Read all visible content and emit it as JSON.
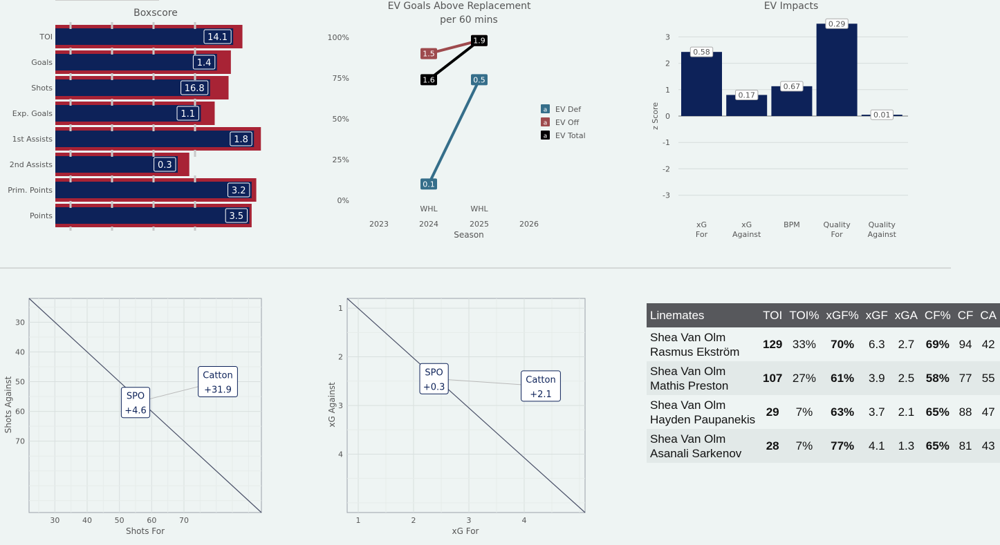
{
  "colors": {
    "navy": "#0d2259",
    "red": "#a82335",
    "def": "#356e8a",
    "off": "#9e4a4d",
    "total": "#000000",
    "bg": "#eef4f3"
  },
  "chart_data": [
    {
      "id": "boxscore",
      "type": "bar",
      "title": "Boxscore",
      "categories": [
        "TOI",
        "Goals",
        "Shots",
        "Exp. Goals",
        "1st Assists",
        "2nd Assists",
        "Prim. Points",
        "Points"
      ],
      "values": [
        14.1,
        1.4,
        16.8,
        1.1,
        1.8,
        0.3,
        3.2,
        3.5
      ],
      "value_labels": [
        "14.1",
        "1.4",
        "16.8",
        "1.1",
        "1.8",
        "0.3",
        "3.2",
        "3.5"
      ],
      "bar_fraction": [
        0.77,
        0.7,
        0.67,
        0.63,
        0.86,
        0.53,
        0.85,
        0.84
      ],
      "background_bar_fraction": [
        0.81,
        0.76,
        0.75,
        0.69,
        0.89,
        0.58,
        0.87,
        0.85
      ],
      "grid": true,
      "legend": "none"
    },
    {
      "id": "ev-gar",
      "type": "line",
      "title": "EV Goals Above Replacement",
      "subtitle": "per 60 mins",
      "xlabel": "Season",
      "x_ticks": [
        "2023",
        "2024",
        "2025",
        "2026"
      ],
      "league_labels": [
        {
          "x": "2024",
          "text": "WHL"
        },
        {
          "x": "2025",
          "text": "WHL"
        }
      ],
      "y_ticks": [
        "0%",
        "25%",
        "50%",
        "75%",
        "100%"
      ],
      "ylim": [
        0,
        100
      ],
      "legend": "right",
      "series": [
        {
          "name": "EV Def",
          "color": "#356e8a",
          "points": [
            {
              "x": "2024",
              "y": 10,
              "label": "0.1"
            },
            {
              "x": "2025",
              "y": 74,
              "label": "0.5"
            }
          ]
        },
        {
          "name": "EV Off",
          "color": "#9e4a4d",
          "points": [
            {
              "x": "2024",
              "y": 90,
              "label": "1.5"
            },
            {
              "x": "2025",
              "y": 98,
              "label": "1.9"
            }
          ]
        },
        {
          "name": "EV Total",
          "color": "#000000",
          "points": [
            {
              "x": "2024",
              "y": 74,
              "label": "1.6"
            },
            {
              "x": "2025",
              "y": 98,
              "label": "1.9"
            }
          ]
        }
      ],
      "legend_key_glyph": "a"
    },
    {
      "id": "ev-impacts",
      "type": "bar",
      "title": "EV Impacts",
      "ylabel": "z Score",
      "categories": [
        [
          "xG",
          "For"
        ],
        [
          "xG",
          "Against"
        ],
        [
          "BPM"
        ],
        [
          "Quality",
          "For"
        ],
        [
          "Quality",
          "Against"
        ]
      ],
      "values": [
        2.43,
        0.8,
        1.13,
        3.5,
        0.05
      ],
      "value_labels": [
        "0.58",
        "0.17",
        "0.67",
        "0.29",
        "0.01"
      ],
      "y_ticks": [
        3,
        2,
        1,
        0,
        -1,
        -2,
        -3
      ],
      "ylim": [
        -3.4,
        3.6
      ],
      "grid": true,
      "legend": "none"
    },
    {
      "id": "shots-scatter",
      "type": "scatter",
      "xlabel": "Shots For",
      "ylabel": "Shots Against",
      "x_ticks": [
        30,
        40,
        50,
        60,
        70
      ],
      "y_ticks": [
        30,
        40,
        50,
        60,
        70
      ],
      "xlim": [
        22,
        94
      ],
      "ylim": [
        22,
        94
      ],
      "y_reversed": true,
      "diagonal": true,
      "points": [
        {
          "name": "SPO",
          "value_label": "+4.6",
          "x": 58,
          "y": 56
        },
        {
          "name": "Catton",
          "value_label": "+31.9",
          "x": 68,
          "y": 57
        }
      ],
      "label_boxes": [
        {
          "name": "SPO",
          "value_label": "+4.6",
          "x": 55,
          "y": 57
        },
        {
          "name": "Catton",
          "value_label": "+31.9",
          "x": 80.5,
          "y": 50
        }
      ]
    },
    {
      "id": "xg-scatter",
      "type": "scatter",
      "xlabel": "xG For",
      "ylabel": "xG Against",
      "x_ticks": [
        1,
        2,
        3,
        4
      ],
      "y_ticks": [
        1,
        2,
        3,
        4
      ],
      "xlim": [
        0.8,
        5.1
      ],
      "ylim": [
        0.8,
        5.2
      ],
      "y_reversed": true,
      "diagonal": true,
      "points": [
        {
          "name": "SPO",
          "value_label": "+0.3",
          "x": 2.42,
          "y": 2.45
        },
        {
          "name": "Catton",
          "value_label": "+2.1",
          "x": 4.3,
          "y": 2.53
        }
      ],
      "label_boxes": [
        {
          "name": "SPO",
          "value_label": "+0.3",
          "x": 2.37,
          "y": 2.45
        },
        {
          "name": "Catton",
          "value_label": "+2.1",
          "x": 4.3,
          "y": 2.6
        }
      ]
    }
  ],
  "linemates": {
    "headers": [
      "Linemates",
      "TOI",
      "TOI%",
      "xGF%",
      "xGF",
      "xGA",
      "CF%",
      "CF",
      "CA"
    ],
    "rows": [
      {
        "line1": "Shea Van Olm",
        "line2": "Rasmus Ekström",
        "toi": "129",
        "toi_pct": "33%",
        "xgf_pct": "70%",
        "xgf": "6.3",
        "xga": "2.7",
        "cf_pct": "69%",
        "cf": "94",
        "ca": "42"
      },
      {
        "line1": "Shea Van Olm",
        "line2": "Mathis Preston",
        "toi": "107",
        "toi_pct": "27%",
        "xgf_pct": "61%",
        "xgf": "3.9",
        "xga": "2.5",
        "cf_pct": "58%",
        "cf": "77",
        "ca": "55"
      },
      {
        "line1": "Shea Van Olm",
        "line2": "Hayden Paupanekis",
        "toi": "29",
        "toi_pct": "7%",
        "xgf_pct": "63%",
        "xgf": "3.7",
        "xga": "2.1",
        "cf_pct": "65%",
        "cf": "88",
        "ca": "47"
      },
      {
        "line1": "Shea Van Olm",
        "line2": "Asanali Sarkenov",
        "toi": "28",
        "toi_pct": "7%",
        "xgf_pct": "77%",
        "xgf": "4.1",
        "xga": "1.3",
        "cf_pct": "65%",
        "cf": "81",
        "ca": "43"
      }
    ]
  }
}
